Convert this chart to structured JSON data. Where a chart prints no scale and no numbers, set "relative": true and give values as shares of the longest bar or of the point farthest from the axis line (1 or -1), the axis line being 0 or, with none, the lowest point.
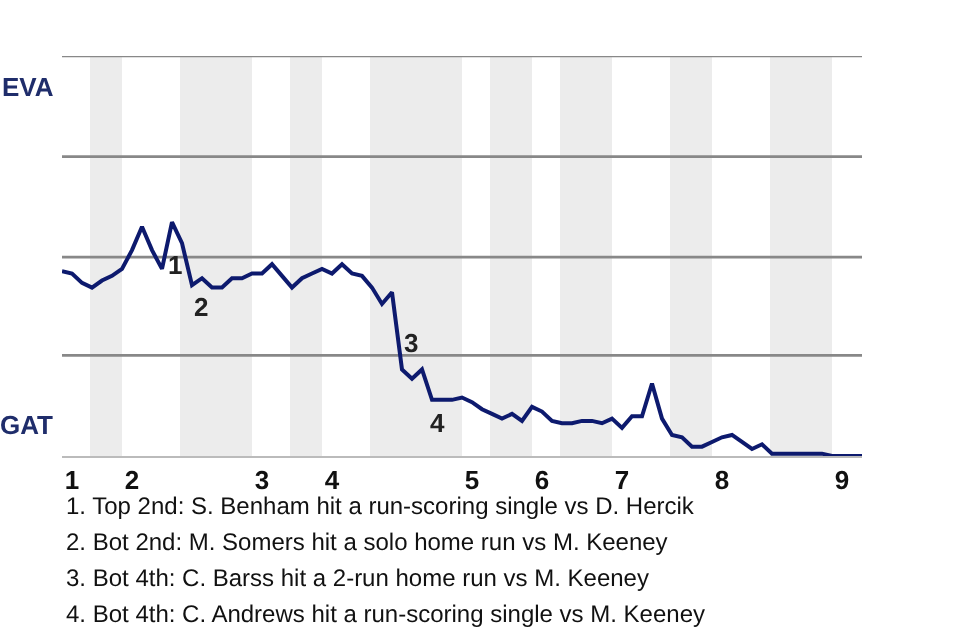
{
  "chart_data": {
    "type": "line",
    "relative": true,
    "categories": [
      null,
      "1",
      null,
      null,
      null,
      null,
      null,
      "2",
      null,
      null,
      null,
      null,
      null,
      null,
      null,
      null,
      null,
      null,
      null,
      null,
      "3",
      null,
      null,
      null,
      null,
      null,
      null,
      "4",
      null,
      null,
      null,
      null,
      null,
      null,
      null,
      null,
      null,
      null,
      null,
      null,
      null,
      "5",
      null,
      null,
      null,
      null,
      null,
      null,
      "6",
      null,
      null,
      null,
      null,
      null,
      null,
      null,
      "7",
      null,
      null,
      null,
      null,
      null,
      null,
      null,
      null,
      null,
      "8",
      null,
      null,
      null,
      null,
      null,
      null,
      null,
      null,
      null,
      null,
      null,
      "9",
      null,
      null
    ],
    "series": [
      {
        "color": "#0d1a6e",
        "values": [
          0.79,
          0.78,
          0.74,
          0.72,
          0.75,
          0.77,
          0.8,
          0.88,
          0.98,
          0.88,
          0.8,
          1,
          0.91,
          0.73,
          0.76,
          0.72,
          0.72,
          0.76,
          0.76,
          0.78,
          0.78,
          0.82,
          0.77,
          0.72,
          0.76,
          0.78,
          0.8,
          0.78,
          0.82,
          0.78,
          0.77,
          0.72,
          0.65,
          0.7,
          0.37,
          0.33,
          0.37,
          0.24,
          0.24,
          0.24,
          0.25,
          0.23,
          0.2,
          0.18,
          0.16,
          0.18,
          0.15,
          0.21,
          0.19,
          0.15,
          0.14,
          0.14,
          0.15,
          0.15,
          0.14,
          0.16,
          0.12,
          0.17,
          0.17,
          0.31,
          0.16,
          0.09,
          0.08,
          0.04,
          0.04,
          0.06,
          0.08,
          0.09,
          0.06,
          0.03,
          0.05,
          0.01,
          0.01,
          0.01,
          0.01,
          0.01,
          0.01,
          0,
          0,
          0,
          0
        ]
      }
    ],
    "grid": false,
    "marker": "none",
    "line_style": "solid",
    "ref_lines": [
      {
        "axis": "y",
        "value": 0.43,
        "color": "#888888"
      },
      {
        "axis": "y",
        "value": 0.85,
        "color": "#888888"
      },
      {
        "axis": "y",
        "value": 1.28,
        "color": "#888888"
      },
      {
        "axis": "y",
        "value": 1.71,
        "color": "#888888"
      }
    ],
    "annotations": [
      "EVA",
      "GAT",
      "1",
      "2",
      "3",
      "4",
      "1. Top 2nd: S. Benham hit a run-scoring single vs D. Hercik",
      "2. Bot 2nd: M. Somers hit a solo home run vs M. Keeney",
      "3. Bot 4th: C. Barss hit a 2-run home run vs M. Keeney",
      "4. Bot 4th: C. Andrews hit a run-scoring single vs M. Keeney"
    ]
  }
}
